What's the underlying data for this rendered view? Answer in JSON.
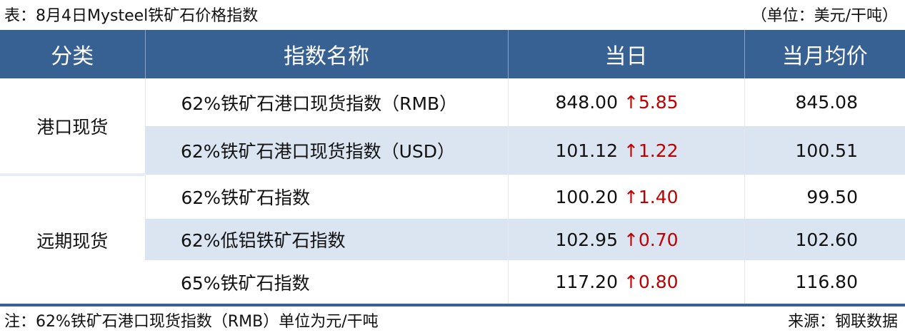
{
  "title": "表：8月4日Mysteel铁矿石价格指数",
  "unit": "（单位：美元/干吨）",
  "headers": [
    "分类",
    "指数名称",
    "当日",
    "当月均价"
  ],
  "groups": [
    "港口现货",
    "远期现货"
  ],
  "rows": [
    {
      "name": "62%铁矿石港口现货指数（RMB）",
      "value": "848.00",
      "arrow": "↑",
      "change": "5.85",
      "avg": "845.08"
    },
    {
      "name": "62%铁矿石港口现货指数（USD）",
      "value": "101.12",
      "arrow": "↑",
      "change": "1.22",
      "avg": "100.51"
    },
    {
      "name": "62%铁矿石指数",
      "value": "100.20",
      "arrow": "↑",
      "change": "1.40",
      "avg": "99.50"
    },
    {
      "name": "62%低铝铁矿石指数",
      "value": "102.95",
      "arrow": "↑",
      "change": "0.70",
      "avg": "102.60"
    },
    {
      "name": "65%铁矿石指数",
      "value": "117.20",
      "arrow": "↑",
      "change": "0.80",
      "avg": "116.80"
    }
  ],
  "note": "注：62%铁矿石港口现货指数（RMB）单位为元/干吨",
  "source": "来源：钢联数据",
  "colors": {
    "header": "#386193",
    "alt_row": "#dbe5f1",
    "up": "#c00000"
  }
}
